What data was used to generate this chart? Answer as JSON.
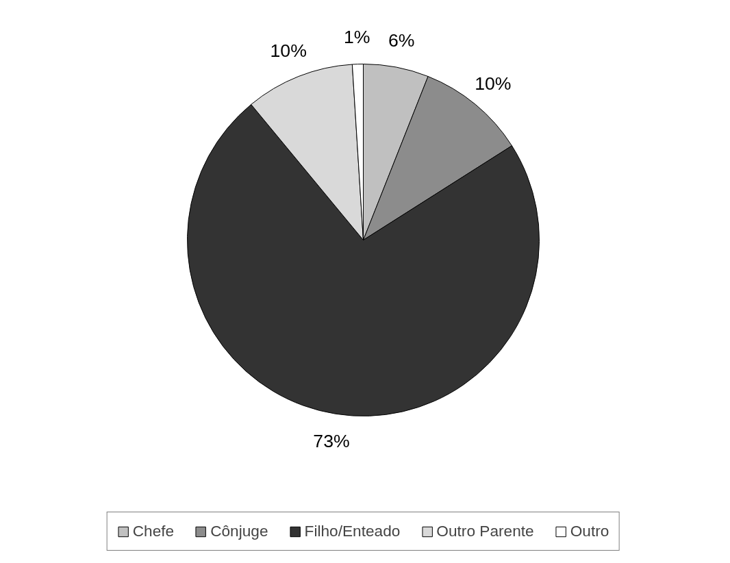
{
  "chart_data": {
    "type": "pie",
    "categories": [
      "Chefe",
      "Cônjuge",
      "Filho/Enteado",
      "Outro Parente",
      "Outro"
    ],
    "values": [
      6,
      10,
      73,
      10,
      1
    ],
    "value_labels": [
      "6%",
      "10%",
      "73%",
      "10%",
      "1%"
    ],
    "colors": [
      "#c0c0c0",
      "#8c8c8c",
      "#333333",
      "#d9d9d9",
      "#ffffff"
    ],
    "legend": "bottom"
  }
}
